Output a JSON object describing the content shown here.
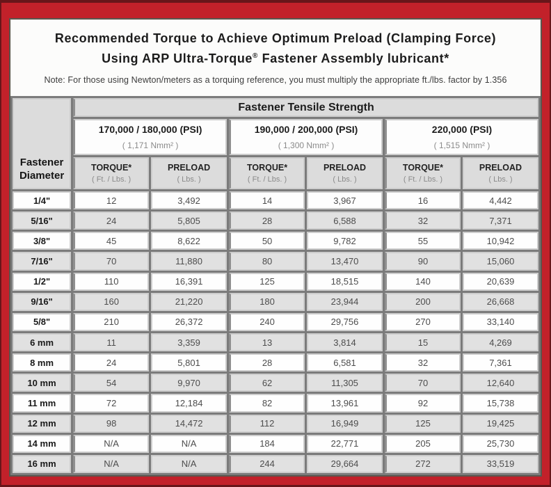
{
  "title": {
    "line1": "Recommended Torque to Achieve Optimum Preload (Clamping Force)",
    "line2_pre": "Using ARP Ultra-Torque",
    "line2_reg": "®",
    "line2_post": " Fastener Assembly lubricant*"
  },
  "note": "Note: For those using Newton/meters as a torquing reference, you must multiply the appropriate ft./lbs. factor by 1.356",
  "colors": {
    "frame_red": "#c2212a",
    "frame_maroon": "#68161a",
    "header_gray": "#dcdcdc",
    "stripe_gray": "#e1e1e1"
  },
  "table": {
    "tensile_header": "Fastener Tensile Strength",
    "diameter_header": "Fastener Diameter",
    "groups": [
      {
        "psi": "170,000 / 180,000 (PSI)",
        "nmm": "( 1,171 Nmm² )"
      },
      {
        "psi": "190,000 / 200,000 (PSI)",
        "nmm": "( 1,300 Nmm² )"
      },
      {
        "psi": "220,000 (PSI)",
        "nmm": "( 1,515 Nmm² )"
      }
    ],
    "col_headers": {
      "torque": "TORQUE*",
      "torque_sub": "( Ft. / Lbs. )",
      "preload": "PRELOAD",
      "preload_sub": "( Lbs. )"
    },
    "rows": [
      {
        "d": "1/4\"",
        "v": [
          "12",
          "3,492",
          "14",
          "3,967",
          "16",
          "4,442"
        ]
      },
      {
        "d": "5/16\"",
        "v": [
          "24",
          "5,805",
          "28",
          "6,588",
          "32",
          "7,371"
        ]
      },
      {
        "d": "3/8\"",
        "v": [
          "45",
          "8,622",
          "50",
          "9,782",
          "55",
          "10,942"
        ]
      },
      {
        "d": "7/16\"",
        "v": [
          "70",
          "11,880",
          "80",
          "13,470",
          "90",
          "15,060"
        ]
      },
      {
        "d": "1/2\"",
        "v": [
          "110",
          "16,391",
          "125",
          "18,515",
          "140",
          "20,639"
        ]
      },
      {
        "d": "9/16\"",
        "v": [
          "160",
          "21,220",
          "180",
          "23,944",
          "200",
          "26,668"
        ]
      },
      {
        "d": "5/8\"",
        "v": [
          "210",
          "26,372",
          "240",
          "29,756",
          "270",
          "33,140"
        ]
      },
      {
        "d": "6 mm",
        "v": [
          "11",
          "3,359",
          "13",
          "3,814",
          "15",
          "4,269"
        ]
      },
      {
        "d": "8 mm",
        "v": [
          "24",
          "5,801",
          "28",
          "6,581",
          "32",
          "7,361"
        ]
      },
      {
        "d": "10 mm",
        "v": [
          "54",
          "9,970",
          "62",
          "11,305",
          "70",
          "12,640"
        ]
      },
      {
        "d": "11 mm",
        "v": [
          "72",
          "12,184",
          "82",
          "13,961",
          "92",
          "15,738"
        ]
      },
      {
        "d": "12 mm",
        "v": [
          "98",
          "14,472",
          "112",
          "16,949",
          "125",
          "19,425"
        ]
      },
      {
        "d": "14 mm",
        "v": [
          "N/A",
          "N/A",
          "184",
          "22,771",
          "205",
          "25,730"
        ]
      },
      {
        "d": "16 mm",
        "v": [
          "N/A",
          "N/A",
          "244",
          "29,664",
          "272",
          "33,519"
        ]
      }
    ]
  }
}
